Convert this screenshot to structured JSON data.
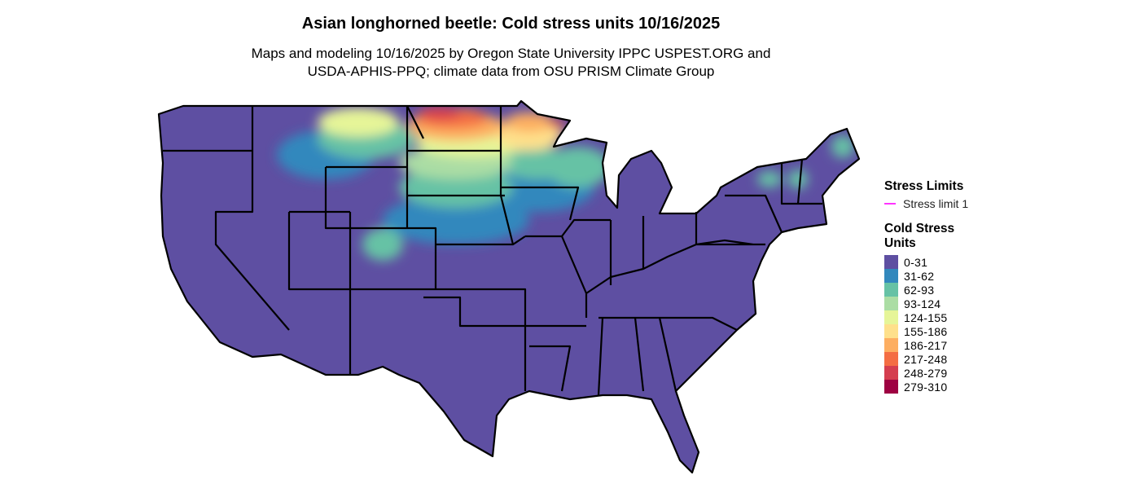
{
  "title": "Asian longhorned beetle: Cold stress units 10/16/2025",
  "subtitle_line1": "Maps and modeling 10/16/2025 by Oregon State University IPPC USPEST.ORG and",
  "subtitle_line2": "USDA-APHIS-PPQ; climate data from OSU PRISM Climate Group",
  "legend": {
    "stress_limits_title": "Stress Limits",
    "stress_limit": {
      "label": "Stress limit 1",
      "color": "#FF33FF"
    },
    "units_title_line1": "Cold Stress",
    "units_title_line2": "Units",
    "bins": [
      {
        "label": "0-31",
        "color": "#5E4FA2"
      },
      {
        "label": "31-62",
        "color": "#3288BD"
      },
      {
        "label": "62-93",
        "color": "#66C2A5"
      },
      {
        "label": "93-124",
        "color": "#ABDDA4"
      },
      {
        "label": "124-155",
        "color": "#E6F598"
      },
      {
        "label": "155-186",
        "color": "#FEE08B"
      },
      {
        "label": "186-217",
        "color": "#FDAE61"
      },
      {
        "label": "217-248",
        "color": "#F46D43"
      },
      {
        "label": "248-279",
        "color": "#D53E4F"
      },
      {
        "label": "279-310",
        "color": "#9E0142"
      }
    ]
  }
}
